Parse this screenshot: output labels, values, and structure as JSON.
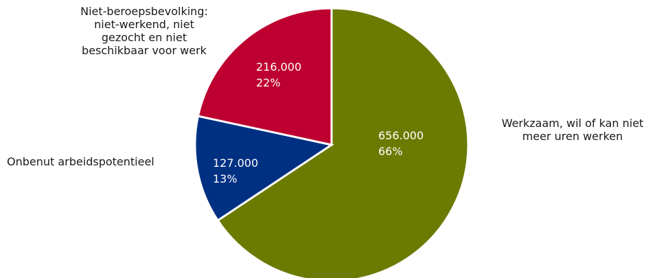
{
  "chart_data": {
    "type": "pie",
    "slices": [
      {
        "label_lines": [
          "Werkzaam, wil of kan niet",
          "meer uren werken"
        ],
        "value": 656000,
        "value_label": "656.000",
        "percent_label": "66%",
        "color": "#6b7a00"
      },
      {
        "label_lines": [
          "Onbenut arbeidspotentieel"
        ],
        "value": 127000,
        "value_label": "127.000",
        "percent_label": "13%",
        "color": "#003082"
      },
      {
        "label_lines": [
          "Niet-beroepsbevolking:",
          "niet-werkend, niet",
          "gezocht en niet",
          "beschikbaar voor werk"
        ],
        "value": 216000,
        "value_label": "216.000",
        "percent_label": "22%",
        "color": "#be0030"
      }
    ]
  }
}
